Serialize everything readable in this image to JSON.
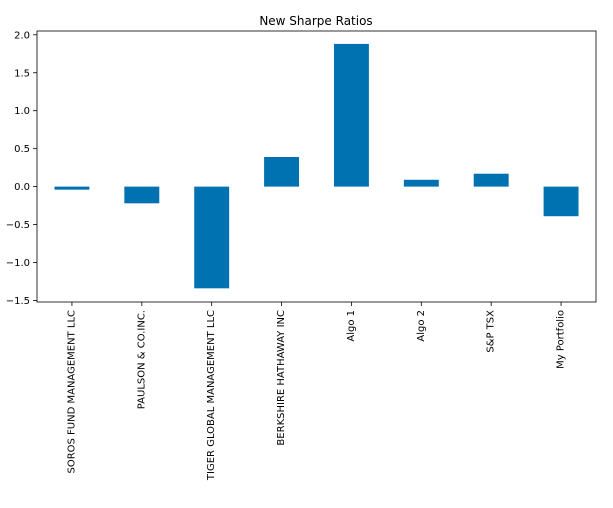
{
  "chart_data": {
    "type": "bar",
    "title": "New Sharpe Ratios",
    "xlabel": "",
    "ylabel": "",
    "categories": [
      "SOROS FUND MANAGEMENT LLC",
      "PAULSON & CO.INC.",
      "TIGER GLOBAL MANAGEMENT LLC",
      "BERKSHIRE HATHAWAY INC",
      "Algo 1",
      "Algo 2",
      "S&P TSX",
      "My Portfolio"
    ],
    "values": [
      -0.04,
      -0.22,
      -1.34,
      0.39,
      1.88,
      0.09,
      0.17,
      -0.39
    ],
    "ylim": [
      -1.52,
      2.05
    ],
    "yticks": [
      -1.5,
      -1.0,
      -0.5,
      0.0,
      0.5,
      1.0,
      1.5,
      2.0
    ],
    "ytick_labels": [
      "−1.5",
      "−1.0",
      "−0.5",
      "0.0",
      "0.5",
      "1.0",
      "1.5",
      "2.0"
    ],
    "bar_color": "#0072b2",
    "grid": false,
    "legend": false
  }
}
